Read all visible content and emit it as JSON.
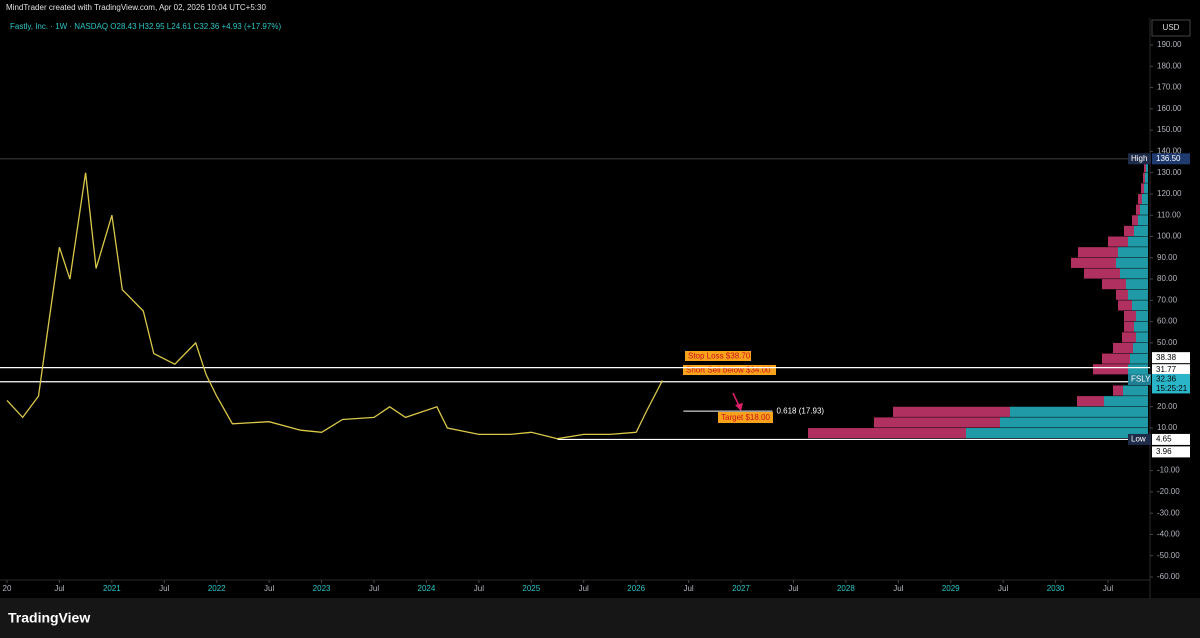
{
  "header": "MindTrader created with TradingView.com, Apr 02, 2026 10:04 UTC+5:30",
  "footer": "TradingView",
  "chart_data": {
    "type": "line",
    "legend": "Fastly, Inc. · 1W · NASDAQ  O28.43 H32.95 L24.61 C32.36 +4.93 (+17.97%)",
    "currency": "USD",
    "color": "#d9c84a",
    "x": [
      2020.0,
      2020.15,
      2020.3,
      2020.4,
      2020.5,
      2020.6,
      2020.75,
      2020.85,
      2021.0,
      2021.1,
      2021.3,
      2021.4,
      2021.6,
      2021.8,
      2021.9,
      2022.0,
      2022.15,
      2022.5,
      2022.8,
      2023.0,
      2023.2,
      2023.5,
      2023.65,
      2023.8,
      2024.1,
      2024.2,
      2024.5,
      2024.8,
      2025.0,
      2025.25,
      2025.5,
      2025.75,
      2026.0,
      2026.1,
      2026.25
    ],
    "values": [
      23,
      15,
      25,
      60,
      95,
      80,
      130,
      85,
      110,
      75,
      65,
      45,
      40,
      50,
      35,
      25,
      12,
      13,
      9,
      8,
      14,
      15,
      20,
      15,
      20,
      10,
      7,
      7,
      8,
      5,
      7,
      7,
      8,
      18,
      32.36
    ],
    "xlim": [
      2020.0,
      2030.7
    ],
    "xticks": [
      {
        "value": 2020,
        "label": "20"
      },
      {
        "value": 2020.5,
        "label": "Jul"
      },
      2021,
      {
        "value": 2021.5,
        "label": "Jul"
      },
      2022,
      {
        "value": 2022.5,
        "label": "Jul"
      },
      2023,
      {
        "value": 2023.5,
        "label": "Jul"
      },
      2024,
      {
        "value": 2024.5,
        "label": "Jul"
      },
      2025,
      {
        "value": 2025.5,
        "label": "Jul"
      },
      2026,
      {
        "value": 2026.5,
        "label": "Jul"
      },
      2027,
      {
        "value": 2027.5,
        "label": "Jul"
      },
      2028,
      {
        "value": 2028.5,
        "label": "Jul"
      },
      2029,
      {
        "value": 2029.5,
        "label": "Jul"
      },
      2030,
      {
        "value": 2030.5,
        "label": "Jul"
      }
    ],
    "ylim": [
      -60,
      190
    ],
    "yticks": [
      {
        "value": 190,
        "label": "190.00"
      },
      {
        "value": 180,
        "label": "180.00"
      },
      {
        "value": 170,
        "label": "170.00"
      },
      {
        "value": 160,
        "label": "160.00"
      },
      {
        "value": 150,
        "label": "150.00"
      },
      {
        "value": 140,
        "label": "140.00"
      },
      {
        "value": 130,
        "label": "130.00"
      },
      {
        "value": 120,
        "label": "120.00"
      },
      {
        "value": 110,
        "label": "110.00"
      },
      {
        "value": 100,
        "label": "100.00"
      },
      {
        "value": 90,
        "label": "90.00"
      },
      {
        "value": 80,
        "label": "80.00"
      },
      {
        "value": 70,
        "label": "70.00"
      },
      {
        "value": 60,
        "label": "60.00"
      },
      {
        "value": 50,
        "label": "50.00"
      },
      {
        "value": 20,
        "label": "20.00"
      },
      {
        "value": 10,
        "label": "10.00"
      },
      {
        "value": -10,
        "label": "-10.00"
      },
      {
        "value": -20,
        "label": "-20.00"
      },
      {
        "value": -30,
        "label": "-30.00"
      },
      {
        "value": -40,
        "label": "-40.00"
      },
      {
        "value": -50,
        "label": "-50.00"
      },
      {
        "value": -60,
        "label": "-60.00"
      }
    ],
    "grid": false,
    "price_labels": [
      {
        "name": "High",
        "value": 136.5,
        "label": "136.50"
      },
      {
        "value": 38.38,
        "label": "38.38"
      },
      {
        "value": 31.77,
        "label": "31.77"
      },
      {
        "name": "FSLY",
        "value": 32.36,
        "label": "32.36",
        "countdown": "15:25:21"
      },
      {
        "name": "Low",
        "value": 4.65,
        "label": "4.65"
      },
      {
        "value": 3.96,
        "label": "3.96"
      }
    ],
    "fib": {
      "value": 17.93,
      "label": "0.618 (17.93)"
    },
    "annotations": [
      "Stop Loss $38.70",
      "Short Sell below $34.00",
      "Target $18.00"
    ],
    "volume_profile": {
      "bins": [
        5,
        10,
        15,
        20,
        25,
        30,
        35,
        40,
        45,
        50,
        55,
        60,
        65,
        70,
        75,
        80,
        85,
        90,
        95,
        100,
        105,
        110,
        115,
        120,
        125,
        130,
        135
      ],
      "buy": [
        182,
        148,
        138,
        44,
        25,
        12,
        20,
        18,
        15,
        12,
        14,
        12,
        16,
        20,
        22,
        28,
        32,
        30,
        20,
        14,
        10,
        8,
        6,
        4,
        3,
        2
      ],
      "sell": [
        158,
        126,
        117,
        27,
        10,
        8,
        35,
        28,
        20,
        14,
        10,
        12,
        14,
        12,
        24,
        36,
        45,
        40,
        20,
        10,
        6,
        4,
        4,
        3,
        2,
        2
      ],
      "buy_color": "#1f9aa6",
      "sell_color": "#b0305f"
    }
  }
}
